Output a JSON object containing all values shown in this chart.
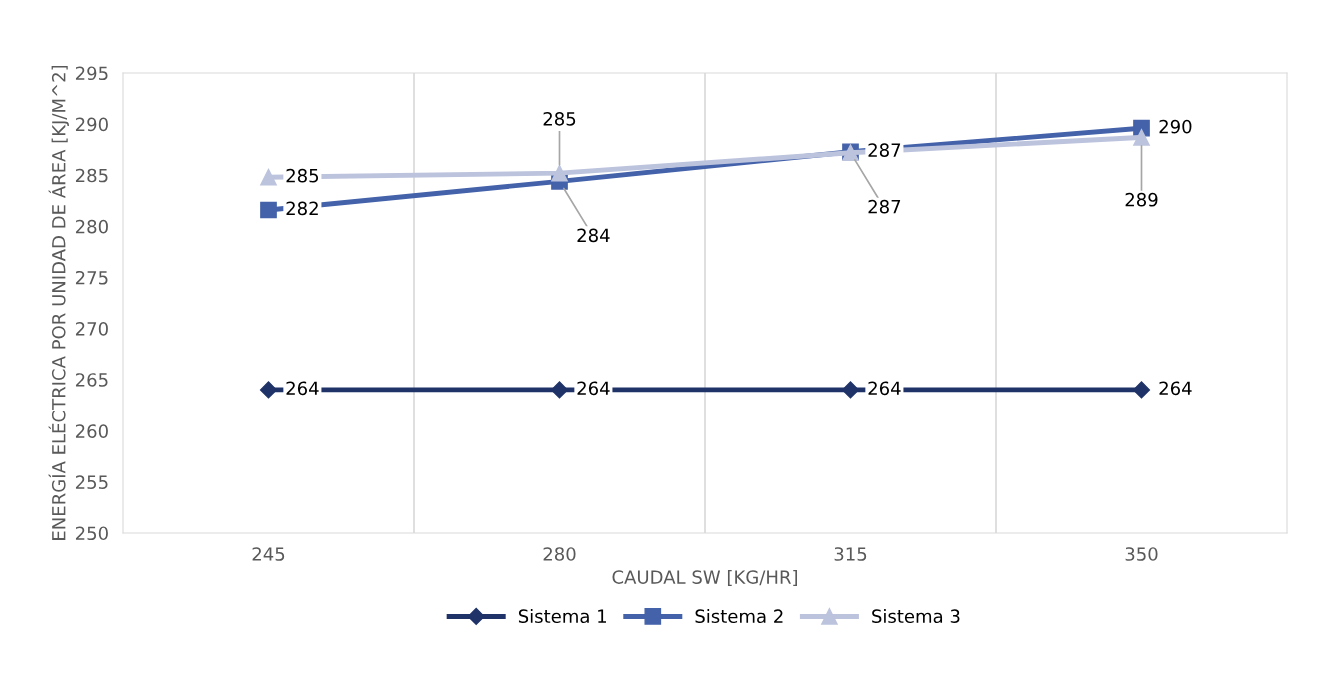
{
  "chart_data": {
    "type": "line",
    "xlabel": "CAUDAL SW [KG/HR]",
    "ylabel": "ENERGÍA ELÉCTRICA POR UNIDAD DE ÁREA [KJ/M^2]",
    "categories": [
      "245",
      "280",
      "315",
      "350"
    ],
    "ylim": [
      250,
      295
    ],
    "yticks": [
      250,
      255,
      260,
      265,
      270,
      275,
      280,
      285,
      290,
      295
    ],
    "grid": "x",
    "legend": "bottom",
    "line_style": "solid",
    "series": [
      {
        "name": "Sistema 1",
        "color": "#1f3368",
        "marker": "diamond",
        "values": [
          264.0,
          264.0,
          264.0,
          264.0
        ],
        "value_labels": [
          "264",
          "264",
          "264",
          "264"
        ]
      },
      {
        "name": "Sistema 2",
        "color": "#4462aa",
        "marker": "square",
        "values": [
          281.6,
          284.4,
          287.3,
          289.6
        ],
        "value_labels": [
          "282",
          "284",
          "287",
          "290"
        ]
      },
      {
        "name": "Sistema 3",
        "color": "#bcc3dd",
        "marker": "triangle",
        "values": [
          284.8,
          285.2,
          287.2,
          288.7
        ],
        "value_labels": [
          "285",
          "285",
          "287",
          "289"
        ]
      }
    ]
  }
}
